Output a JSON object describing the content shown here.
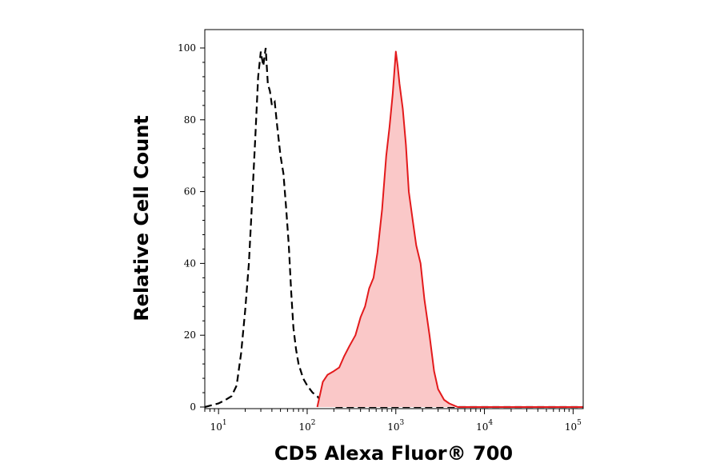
{
  "chart_data": {
    "type": "area",
    "title": "",
    "xlabel": "CD5 Alexa Fluor® 700",
    "ylabel": "Relative Cell Count",
    "xscale": "log",
    "xlim": [
      7,
      130000
    ],
    "ylim": [
      0,
      100
    ],
    "yticks": [
      {
        "value": 0,
        "label": "0"
      },
      {
        "value": 20,
        "label": "20"
      },
      {
        "value": 40,
        "label": "40"
      },
      {
        "value": 60,
        "label": "60"
      },
      {
        "value": 80,
        "label": "80"
      },
      {
        "value": 100,
        "label": "100"
      }
    ],
    "xticks": [
      {
        "value": 10,
        "base": "10",
        "exp": "1"
      },
      {
        "value": 100,
        "base": "10",
        "exp": "2"
      },
      {
        "value": 1000,
        "base": "10",
        "exp": "3"
      },
      {
        "value": 10000,
        "base": "10",
        "exp": "4"
      },
      {
        "value": 100000,
        "base": "10",
        "exp": "5"
      }
    ],
    "grid": false,
    "series": [
      {
        "style": "dashed-line",
        "color": "#000000",
        "x": [
          7,
          10,
          12,
          14,
          16,
          18,
          20,
          22,
          24,
          26,
          28,
          30,
          32,
          34,
          36,
          38,
          40,
          43,
          46,
          50,
          54,
          58,
          62,
          66,
          70,
          75,
          80,
          90,
          100,
          115,
          130,
          150,
          200,
          1000,
          10000,
          130000
        ],
        "y": [
          0,
          1,
          2,
          3,
          6,
          15,
          27,
          40,
          58,
          75,
          92,
          99,
          95,
          100,
          90,
          88,
          84,
          85,
          78,
          70,
          65,
          55,
          45,
          32,
          22,
          16,
          12,
          8,
          6,
          4,
          3,
          1,
          0,
          0,
          0,
          0
        ]
      },
      {
        "style": "filled-line",
        "color": "#e31a1c",
        "fill": "#fac8c8",
        "x": [
          130,
          150,
          170,
          200,
          230,
          260,
          300,
          350,
          400,
          450,
          500,
          560,
          620,
          700,
          780,
          850,
          920,
          1000,
          1050,
          1100,
          1200,
          1300,
          1400,
          1550,
          1700,
          1900,
          2100,
          2400,
          2700,
          3000,
          3500,
          4000,
          5000,
          130000
        ],
        "y": [
          0,
          7,
          9,
          10,
          11,
          14,
          17,
          20,
          25,
          28,
          33,
          36,
          43,
          55,
          70,
          78,
          87,
          99,
          95,
          90,
          83,
          73,
          60,
          52,
          45,
          40,
          30,
          20,
          10,
          5,
          2,
          1,
          0,
          0
        ]
      }
    ]
  }
}
